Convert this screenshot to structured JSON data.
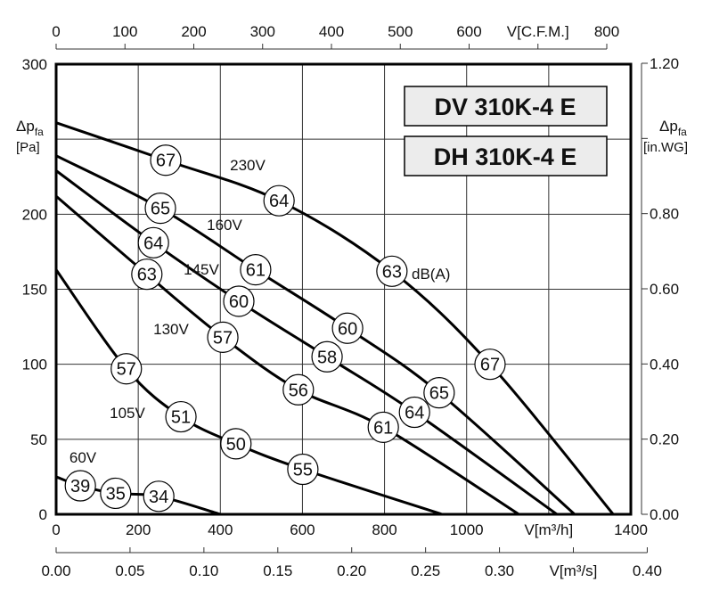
{
  "chart_data": {
    "type": "line",
    "xlabel": "V[m³/h]",
    "ylabel": "Δp fa [Pa]",
    "xlim": [
      0,
      1400
    ],
    "ylim": [
      0,
      300
    ],
    "x_ticks": [
      0,
      200,
      400,
      600,
      800,
      1000,
      1200,
      1400
    ],
    "y_ticks": [
      0,
      50,
      100,
      150,
      200,
      250,
      300
    ],
    "grid": true,
    "y_label_parts": {
      "symbol": "Δp",
      "sub": "fa",
      "unit": "[Pa]"
    },
    "right_axis": {
      "label_symbol": "Δp",
      "label_sub": "fa",
      "unit": "[in.WG]",
      "range": [
        0,
        1.2
      ],
      "ticks": [
        "0.00",
        "0.20",
        "0.40",
        "0.60",
        "0.80",
        "1.00",
        "1.20"
      ]
    },
    "top_axis": {
      "label": "V[C.F.M.]",
      "ticks": [
        "0",
        "100",
        "200",
        "300",
        "400",
        "500",
        "600",
        "700",
        "800"
      ]
    },
    "bottom_axis2": {
      "label": "V[m³/s]",
      "ticks": [
        "0.00",
        "0.05",
        "0.10",
        "0.15",
        "0.20",
        "0.25",
        "0.30",
        "0.35",
        "0.40"
      ]
    },
    "models": [
      "DV 310K-4 E",
      "DH 310K-4 E"
    ],
    "db_unit": "dB(A)",
    "series": [
      {
        "name": "230V",
        "x": [
          0,
          267,
          543,
          818,
          1057,
          1357
        ],
        "y": [
          261,
          236,
          209,
          162,
          100,
          0
        ],
        "db": [
          {
            "x": 267,
            "y": 236,
            "v": "67"
          },
          {
            "x": 543,
            "y": 209,
            "v": "64"
          },
          {
            "x": 818,
            "y": 162,
            "v": "63"
          },
          {
            "x": 1057,
            "y": 100,
            "v": "67"
          }
        ]
      },
      {
        "name": "160V",
        "x": [
          0,
          254,
          486,
          710,
          933,
          1263
        ],
        "y": [
          239,
          204,
          163,
          124,
          81,
          0
        ],
        "db": [
          {
            "x": 254,
            "y": 204,
            "v": "65"
          },
          {
            "x": 486,
            "y": 163,
            "v": "61"
          },
          {
            "x": 710,
            "y": 124,
            "v": "60"
          },
          {
            "x": 933,
            "y": 81,
            "v": "65"
          }
        ]
      },
      {
        "name": "145V",
        "x": [
          0,
          237,
          445,
          660,
          873,
          1220
        ],
        "y": [
          229,
          181,
          142,
          105,
          68,
          0
        ],
        "db": [
          {
            "x": 237,
            "y": 181,
            "v": "64"
          },
          {
            "x": 445,
            "y": 142,
            "v": "60"
          },
          {
            "x": 660,
            "y": 105,
            "v": "58"
          },
          {
            "x": 873,
            "y": 68,
            "v": "64"
          }
        ]
      },
      {
        "name": "130V",
        "x": [
          0,
          221,
          406,
          590,
          797,
          1127
        ],
        "y": [
          212,
          160,
          118,
          83,
          58,
          0
        ],
        "db": [
          {
            "x": 221,
            "y": 160,
            "v": "63"
          },
          {
            "x": 406,
            "y": 118,
            "v": "57"
          },
          {
            "x": 590,
            "y": 83,
            "v": "56"
          },
          {
            "x": 797,
            "y": 58,
            "v": "61"
          }
        ]
      },
      {
        "name": "105V",
        "x": [
          0,
          171,
          304,
          438,
          601,
          940
        ],
        "y": [
          163,
          97,
          65,
          47,
          30,
          0
        ],
        "db": [
          {
            "x": 171,
            "y": 97,
            "v": "57"
          },
          {
            "x": 304,
            "y": 65,
            "v": "51"
          },
          {
            "x": 438,
            "y": 47,
            "v": "50"
          },
          {
            "x": 601,
            "y": 30,
            "v": "55"
          }
        ]
      },
      {
        "name": "60V",
        "x": [
          0,
          59,
          145,
          250,
          400
        ],
        "y": [
          25,
          19,
          14,
          12,
          0
        ],
        "db": [
          {
            "x": 59,
            "y": 19,
            "v": "39"
          },
          {
            "x": 145,
            "y": 14,
            "v": "35"
          },
          {
            "x": 250,
            "y": 12,
            "v": "34"
          }
        ]
      }
    ]
  }
}
